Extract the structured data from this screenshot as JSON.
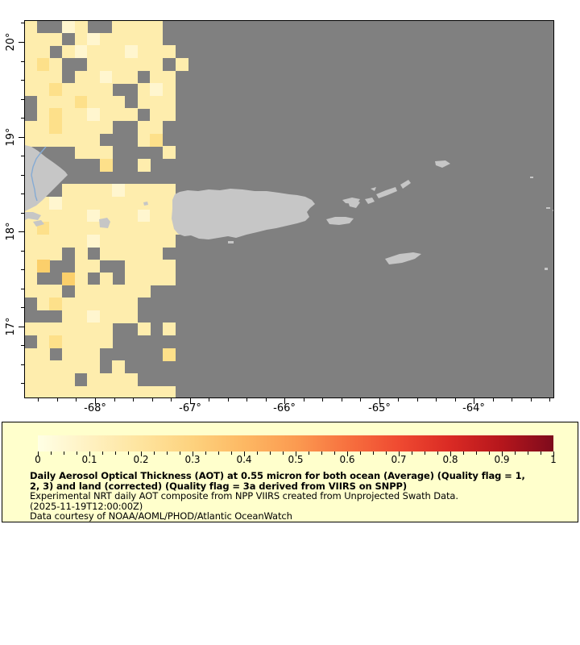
{
  "map": {
    "ocean_color": "#808080",
    "land_color": "#C6C6C6",
    "river_color": "#85ABD4",
    "axis": {
      "lat_labels": [
        {
          "text": "20°",
          "value": 20
        },
        {
          "text": "19°",
          "value": 19
        },
        {
          "text": "18°",
          "value": 18
        },
        {
          "text": "17°",
          "value": 17
        }
      ],
      "lon_labels": [
        {
          "text": "-68°",
          "value": -68
        },
        {
          "text": "-67°",
          "value": -67
        },
        {
          "text": "-66°",
          "value": -66
        },
        {
          "text": "-65°",
          "value": -65
        },
        {
          "text": "-64°",
          "value": -64
        }
      ]
    },
    "aot_palette": {
      "a": "#FFF6CF",
      "b": "#FEEDAD",
      "c": "#FDE08A",
      "d": "#FBCF6B"
    },
    "aot_grid": [
      "b..ab..bbbb..",
      "bbb.babbbbb..",
      "bb.babbbabbb.",
      "bcb..bbbbbb.b",
      "bbb.bbabb.bb.",
      "bbcbbbb..bab.",
      ".bbbcbbb.bbb.",
      ".bcbbabbb.bb.",
      "bbcbbbb..bb..",
      "bbbbbb...bc..",
      "....bbb....b.",
      "......c..b...",
      ".............",
      "...bbbbabbbb.",
      "bbabbbbbbbbbb",
      "bbbbbabbbabbb",
      "bcbbbbbbbbbbb",
      "bbbbbabbbbbb.",
      "bbb.b.bbbbb..",
      "bd..bb..bbbb.",
      "b..db.b.bbbb.",
      "bbb.bbbbbb...",
      ".bcbbbbbb....",
      "...bbabbb....",
      "bbbbbbb..b.b.",
      ".bcbbbb......",
      "bb.bbb.....c.",
      "bbbbbb.b.....",
      "bbbb.bbbb....",
      "bbbbbbbbbbbb."
    ]
  },
  "legend": {
    "background": "#FFFFCC",
    "colorbar": {
      "tick_labels": [
        "0",
        "0.1",
        "0.2",
        "0.3",
        "0.4",
        "0.5",
        "0.6",
        "0.7",
        "0.8",
        "0.9",
        "1"
      ],
      "gradient_stops": [
        "#FFFFE5",
        "#FFF1C1",
        "#FEE49E",
        "#FDD27E",
        "#FDB863",
        "#FB9B51",
        "#F7713F",
        "#EF4A31",
        "#DA2A24",
        "#B5161C",
        "#7E0B1C"
      ]
    },
    "title_line1": "Daily Aerosol Optical Thickness (AOT) at 0.55 micron for both ocean (Average) (Quality flag = 1,",
    "title_line2": "2, 3) and land (corrected) (Quality flag = 3a derived from VIIRS on SNPP)",
    "line3": "Experimental NRT daily AOT composite from NPP VIIRS created from Unprojected Swath Data.",
    "line4": "(2025-11-19T12:00:00Z)",
    "line5": "Data courtesy of NOAA/AOML/PHOD/Atlantic OceanWatch"
  }
}
